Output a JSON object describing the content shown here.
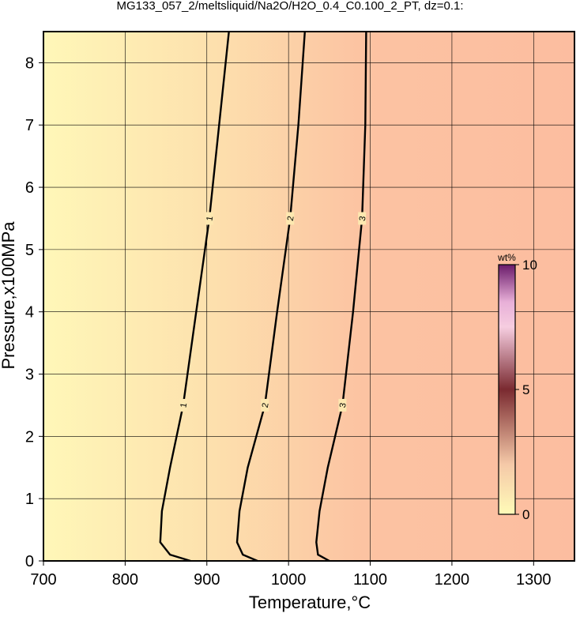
{
  "chart_data": {
    "type": "contour",
    "title": "MG133_057_2/meltsliquid/Na2O/H2O_0.4_C0.100_2_PT, dz=0.1:",
    "x_label": "Temperature,°C",
    "y_label": "Pressure,x100MPa",
    "xlim": [
      700,
      1350
    ],
    "ylim": [
      0,
      8.5
    ],
    "xticks": [
      700,
      800,
      900,
      1000,
      1100,
      1200,
      1300
    ],
    "yticks": [
      0,
      1,
      2,
      3,
      4,
      5,
      6,
      7,
      8
    ],
    "grid": true,
    "contours": [
      {
        "level": 1,
        "x": [
          880,
          855,
          843,
          845,
          855,
          871,
          887,
          903,
          915,
          927
        ],
        "y": [
          0,
          0.1,
          0.3,
          0.8,
          1.5,
          2.5,
          4,
          5.5,
          7,
          8.5
        ],
        "label_at": [
          5,
          7
        ]
      },
      {
        "level": 2,
        "x": [
          962,
          944,
          937,
          940,
          950,
          971,
          986,
          1002,
          1012,
          1020
        ],
        "y": [
          0,
          0.1,
          0.3,
          0.8,
          1.5,
          2.5,
          4,
          5.5,
          7,
          8.5
        ],
        "label_at": [
          5,
          7
        ]
      },
      {
        "level": 3,
        "x": [
          1050,
          1036,
          1034,
          1038,
          1048,
          1066,
          1079,
          1090,
          1094,
          1095
        ],
        "y": [
          0,
          0.1,
          0.3,
          0.8,
          1.5,
          2.5,
          4,
          5.5,
          7,
          8.5
        ],
        "label_at": [
          5,
          7
        ]
      }
    ],
    "colorbar": {
      "label": "wt%",
      "lim": [
        0,
        10
      ],
      "ticks": [
        0,
        5,
        10
      ],
      "stops": [
        0,
        2,
        5,
        7.5,
        8.5,
        10
      ],
      "colors": [
        "#fffbb8",
        "#f5c9a8",
        "#7a2a30",
        "#f6cde0",
        "#e8b0d8",
        "#6a1a6a"
      ]
    }
  }
}
